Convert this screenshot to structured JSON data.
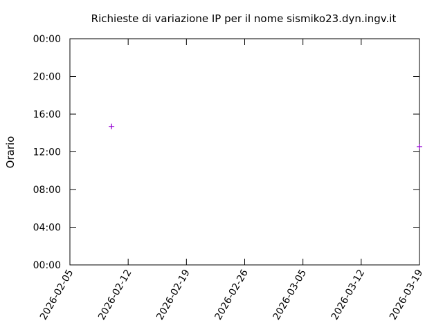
{
  "chart_data": {
    "type": "scatter",
    "title": "Richieste di variazione IP per il nome sismiko23.dyn.ingv.it",
    "y_label": "Orario",
    "x": [
      "2026-02-10",
      "2026-03-19"
    ],
    "series": [
      {
        "color": "#9400d3",
        "marker": "+",
        "values": [
          14.7,
          12.55
        ]
      }
    ],
    "xlim": [
      "2026-02-05",
      "2026-03-19"
    ],
    "xticks": [
      "2026-02-05",
      "2026-02-12",
      "2026-02-19",
      "2026-02-26",
      "2026-03-05",
      "2026-03-12",
      "2026-03-19"
    ],
    "ylim": [
      0,
      24
    ],
    "yticks": [
      {
        "value": 0,
        "label": "00:00"
      },
      {
        "value": 4,
        "label": "04:00"
      },
      {
        "value": 8,
        "label": "08:00"
      },
      {
        "value": 12,
        "label": "12:00"
      },
      {
        "value": 16,
        "label": "16:00"
      },
      {
        "value": 20,
        "label": "20:00"
      },
      {
        "value": 24,
        "label": "00:00"
      }
    ],
    "grid": false
  }
}
